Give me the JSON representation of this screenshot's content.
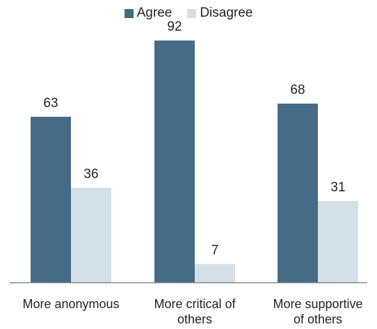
{
  "chart_data": {
    "type": "bar",
    "categories": [
      [
        "More anonymous"
      ],
      [
        "More critical of",
        "others"
      ],
      [
        "More supportive",
        "of others"
      ]
    ],
    "series": [
      {
        "name": "Agree",
        "values": [
          63,
          92,
          68
        ],
        "color": "#466b86"
      },
      {
        "name": "Disagree",
        "values": [
          36,
          7,
          31
        ],
        "color": "#d3e0e8"
      }
    ],
    "ylim": [
      0,
      100
    ],
    "legend_position": "top-center",
    "grid": false
  }
}
